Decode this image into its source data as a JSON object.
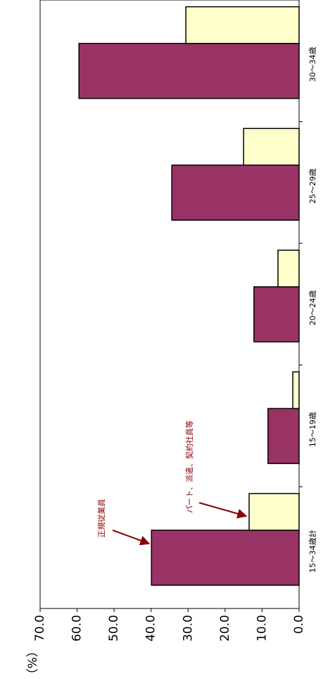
{
  "chart_data": {
    "type": "bar",
    "y_axis_label": "（%）",
    "categories": [
      "15～34歳計",
      "15～19歳",
      "20～24歳",
      "25～29歳",
      "30～34歳"
    ],
    "series": [
      {
        "name": "正規従業員",
        "color": "#993366",
        "values": [
          39.9,
          8.4,
          12.2,
          34.4,
          59.5
        ]
      },
      {
        "name": "パート、派遣、契約社員等",
        "color": "#ffffcc",
        "values": [
          13.5,
          1.7,
          5.7,
          15.0,
          30.6
        ]
      }
    ],
    "ylim": [
      0,
      70
    ],
    "yticks": [
      {
        "value": 0,
        "label": "0.0"
      },
      {
        "value": 10,
        "label": "10.0"
      },
      {
        "value": 20,
        "label": "20.0"
      },
      {
        "value": 30,
        "label": "30.0"
      },
      {
        "value": 40,
        "label": "40.0"
      },
      {
        "value": 50,
        "label": "50.0"
      },
      {
        "value": 60,
        "label": "60.0"
      },
      {
        "value": 70,
        "label": "70.0"
      }
    ]
  }
}
